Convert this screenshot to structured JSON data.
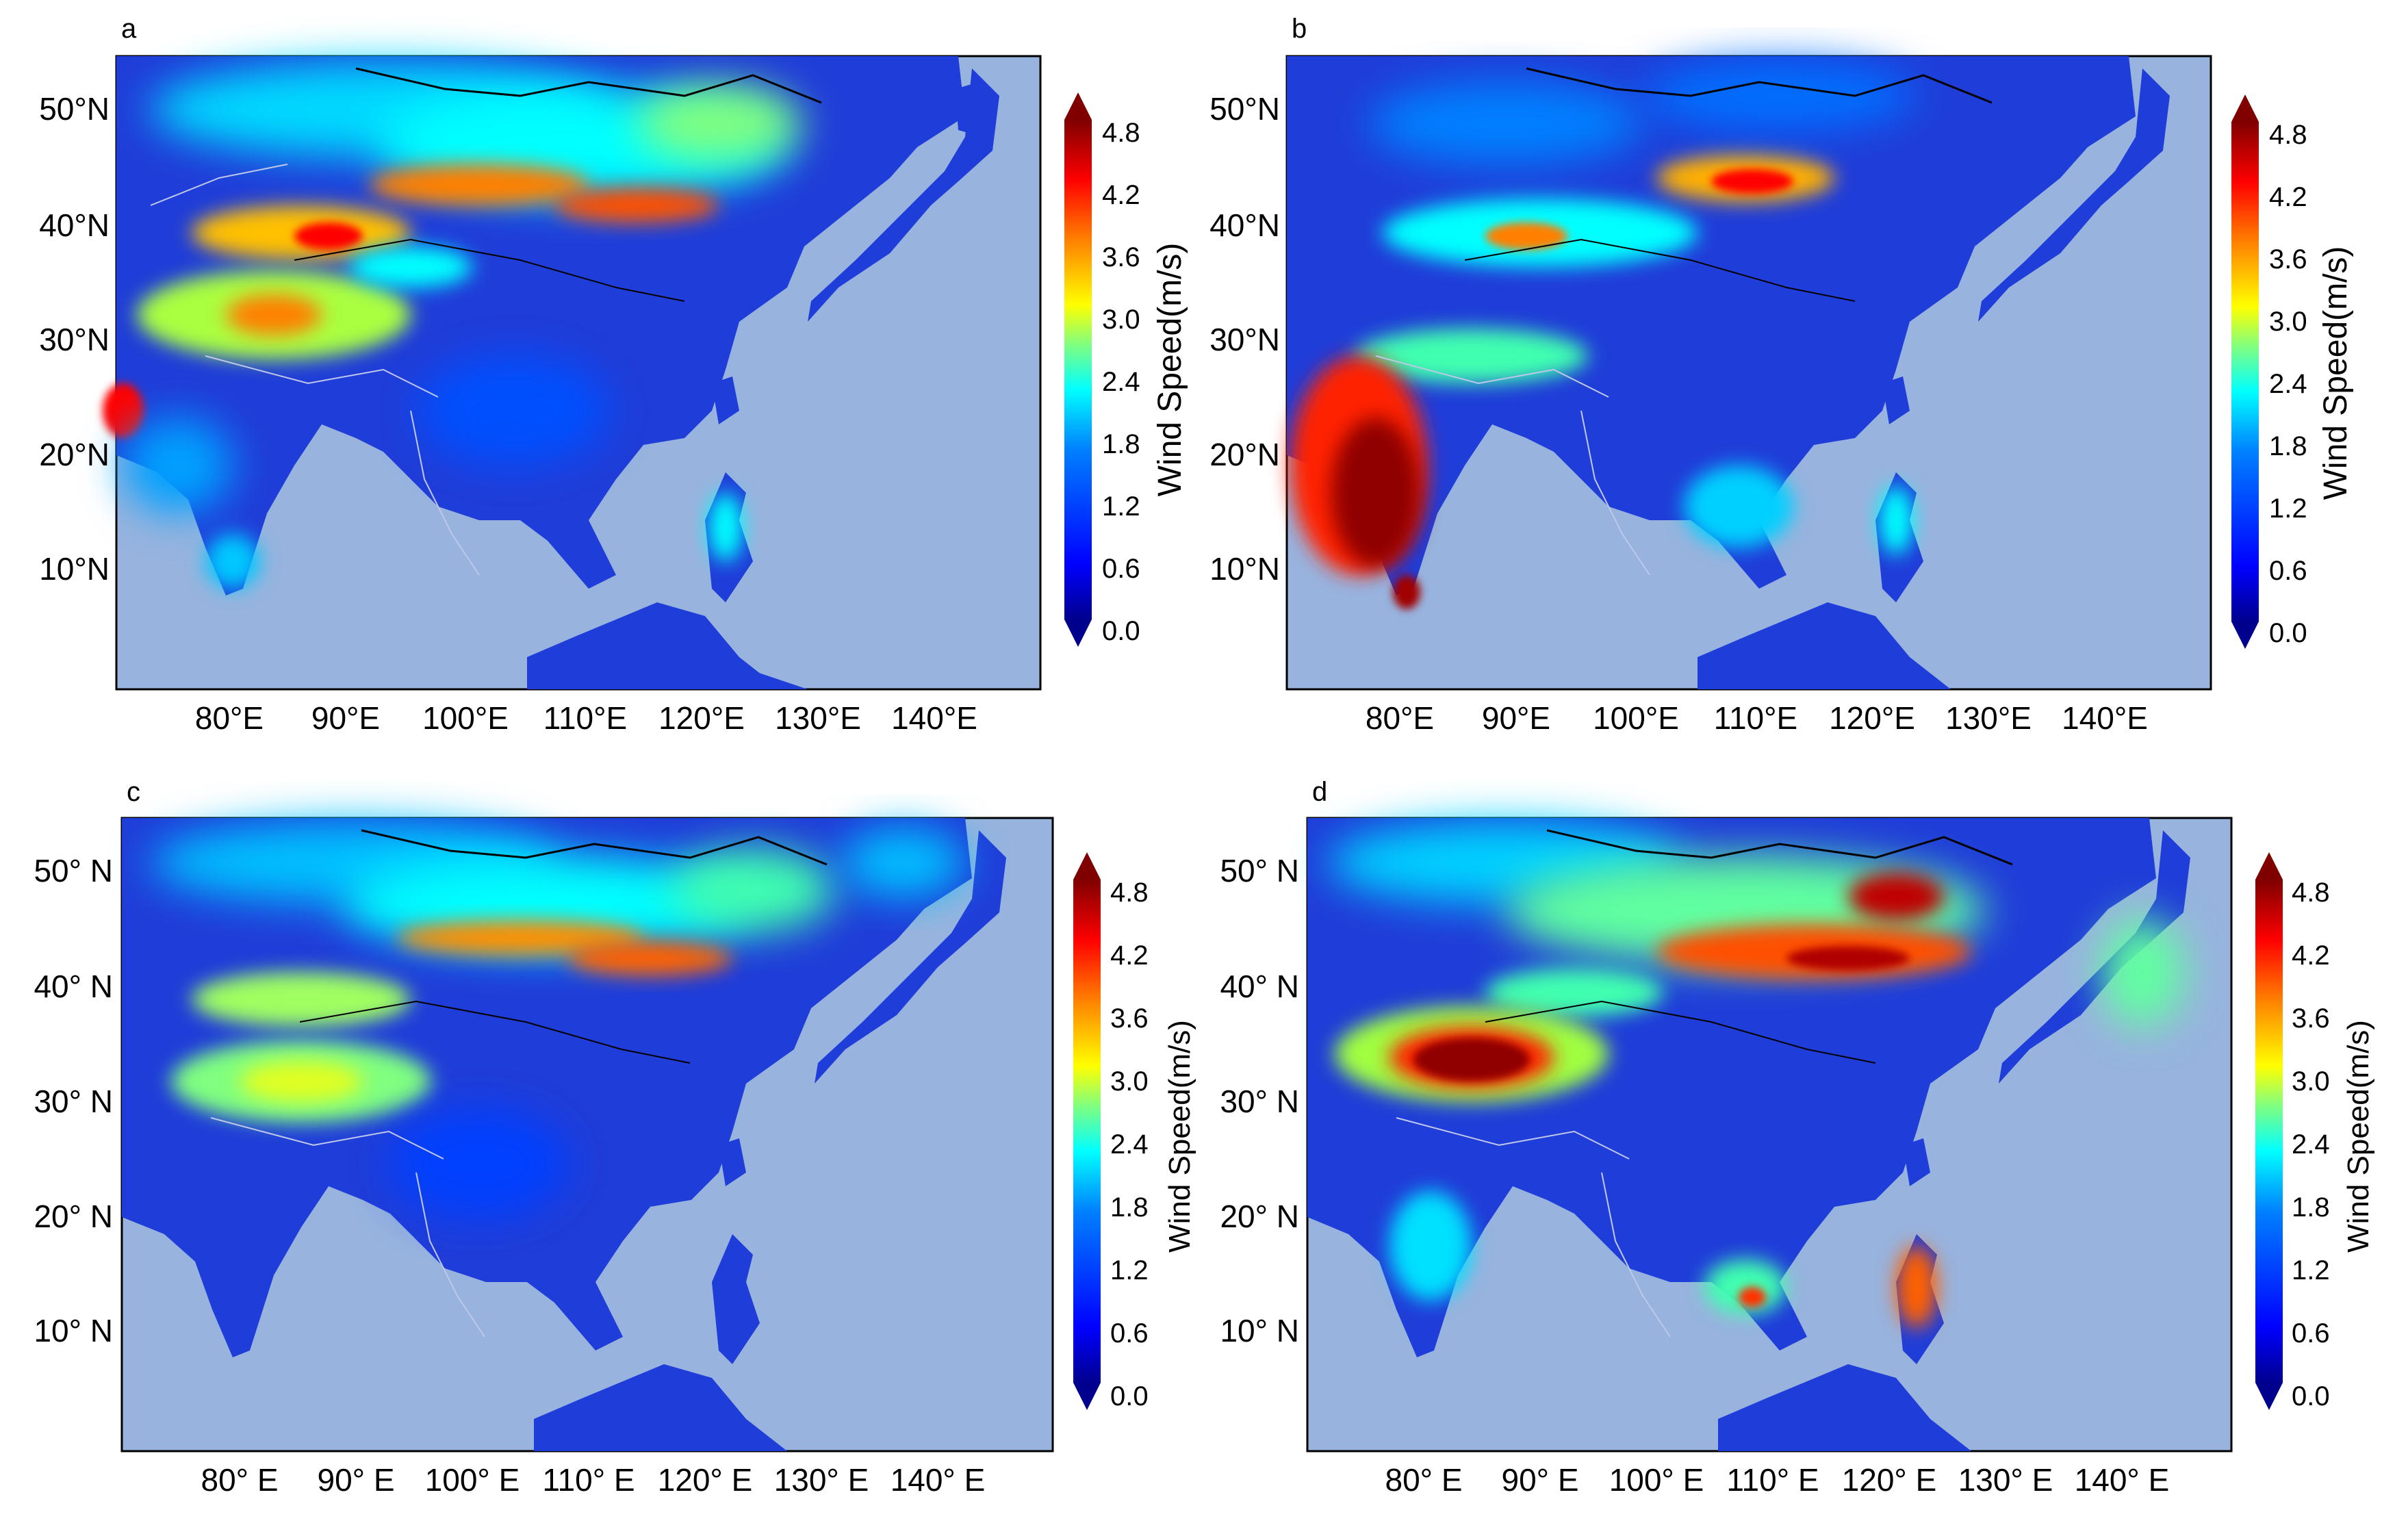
{
  "panels": [
    {
      "id": "a",
      "label": "a",
      "lat_labels": [
        "50°N",
        "40°N",
        "30°N",
        "20°N",
        "10°N"
      ],
      "lon_labels": [
        "80°E",
        "90°E",
        "100°E",
        "110°E",
        "120°E",
        "130°E",
        "140°E"
      ],
      "colorbar_label": "Wind Speed(m/s)",
      "colorbar_ticks": [
        "4.8",
        "4.2",
        "3.6",
        "3.0",
        "2.4",
        "1.8",
        "1.2",
        "0.6",
        "0.0"
      ]
    },
    {
      "id": "b",
      "label": "b",
      "lat_labels": [
        "50°N",
        "40°N",
        "30°N",
        "20°N",
        "10°N"
      ],
      "lon_labels": [
        "80°E",
        "90°E",
        "100°E",
        "110°E",
        "120°E",
        "130°E",
        "140°E"
      ],
      "colorbar_label": "Wind Speed(m/s)",
      "colorbar_ticks": [
        "4.8",
        "4.2",
        "3.6",
        "3.0",
        "2.4",
        "1.8",
        "1.2",
        "0.6",
        "0.0"
      ]
    },
    {
      "id": "c",
      "label": "c",
      "lat_labels": [
        "50° N",
        "40° N",
        "30° N",
        "20° N",
        "10° N"
      ],
      "lon_labels": [
        "80° E",
        "90° E",
        "100° E",
        "110° E",
        "120° E",
        "130° E",
        "140° E"
      ],
      "colorbar_label": "Wind Speed(m/s)",
      "colorbar_ticks": [
        "4.8",
        "4.2",
        "3.6",
        "3.0",
        "2.4",
        "1.8",
        "1.2",
        "0.6",
        "0.0"
      ]
    },
    {
      "id": "d",
      "label": "d",
      "lat_labels": [
        "50° N",
        "40° N",
        "30° N",
        "20° N",
        "10° N"
      ],
      "lon_labels": [
        "80° E",
        "90° E",
        "100° E",
        "110° E",
        "120° E",
        "130° E",
        "140° E"
      ],
      "colorbar_label": "Wind Speed(m/s)",
      "colorbar_ticks": [
        "4.8",
        "4.2",
        "3.6",
        "3.0",
        "2.4",
        "1.8",
        "1.2",
        "0.6",
        "0.0"
      ]
    }
  ],
  "colors": {
    "ocean": "#97b3de",
    "land_low": "#1f3dd8",
    "colormap": [
      "#00008f",
      "#0000ff",
      "#0080ff",
      "#00ffff",
      "#80ff80",
      "#ffff00",
      "#ff8000",
      "#ff0000",
      "#800000"
    ]
  }
}
